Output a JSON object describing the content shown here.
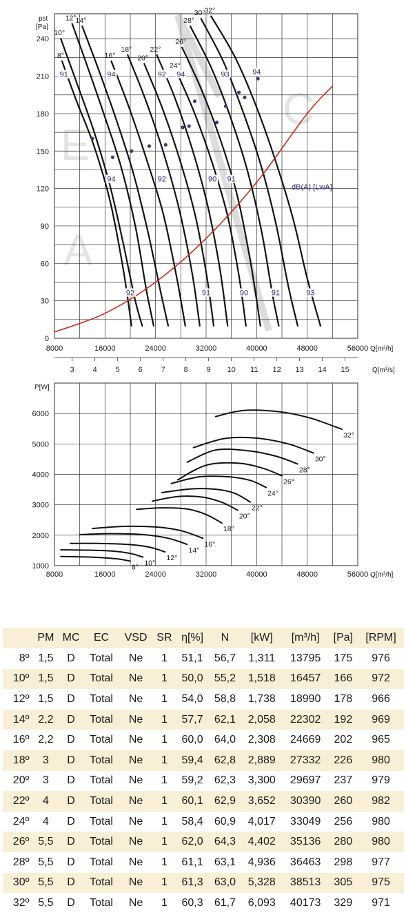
{
  "pressure_chart": {
    "ylabel": "pst",
    "yunit": "[Pa]",
    "xlabel": "Q[m³/h]",
    "x2label": "Q[m³/s]",
    "efficiency_label": "dB(A) [LwA]"
  },
  "power_chart": {
    "ylabel": "P[W]",
    "xlabel": "Q[m³/h]"
  },
  "table": {
    "headers": [
      "",
      "PM",
      "MC",
      "EC",
      "VSD",
      "SR",
      "η[%]",
      "N",
      "[kW]",
      "[m³/h]",
      "[Pa]",
      "[RPM]"
    ],
    "rows": [
      [
        "8º",
        "1,5",
        "D",
        "Total",
        "Ne",
        "1",
        "51,1",
        "56,7",
        "1,311",
        "13795",
        "175",
        "976"
      ],
      [
        "10º",
        "1,5",
        "D",
        "Total",
        "Ne",
        "1",
        "50,0",
        "55,2",
        "1,518",
        "16457",
        "166",
        "972"
      ],
      [
        "12º",
        "1,5",
        "D",
        "Total",
        "Ne",
        "1",
        "54,0",
        "58,8",
        "1,738",
        "18990",
        "178",
        "966"
      ],
      [
        "14º",
        "2,2",
        "D",
        "Total",
        "Ne",
        "1",
        "57,7",
        "62,1",
        "2,058",
        "22302",
        "192",
        "969"
      ],
      [
        "16º",
        "2,2",
        "D",
        "Total",
        "Ne",
        "1",
        "60,0",
        "64,0",
        "2,308",
        "24669",
        "202",
        "965"
      ],
      [
        "18º",
        "3",
        "D",
        "Total",
        "Ne",
        "1",
        "59,4",
        "62,8",
        "2,889",
        "27332",
        "226",
        "980"
      ],
      [
        "20º",
        "3",
        "D",
        "Total",
        "Ne",
        "1",
        "59,2",
        "62,3",
        "3,300",
        "29697",
        "237",
        "979"
      ],
      [
        "22º",
        "4",
        "D",
        "Total",
        "Ne",
        "1",
        "60,1",
        "62,9",
        "3,652",
        "30390",
        "260",
        "982"
      ],
      [
        "24º",
        "4",
        "D",
        "Total",
        "Ne",
        "1",
        "58,4",
        "60,9",
        "4,017",
        "33049",
        "256",
        "980"
      ],
      [
        "26º",
        "5,5",
        "D",
        "Total",
        "Ne",
        "1",
        "62,0",
        "64,3",
        "4,402",
        "35136",
        "280",
        "980"
      ],
      [
        "28º",
        "5,5",
        "D",
        "Total",
        "Ne",
        "1",
        "61,1",
        "63,1",
        "4,936",
        "36463",
        "298",
        "977"
      ],
      [
        "30º",
        "5,5",
        "D",
        "Total",
        "Ne",
        "1",
        "61,3",
        "63,0",
        "5,328",
        "38513",
        "305",
        "975"
      ],
      [
        "32º",
        "5,5",
        "D",
        "Total",
        "Ne",
        "1",
        "60,3",
        "61,7",
        "6,093",
        "40173",
        "329",
        "971"
      ]
    ]
  },
  "chart_data": [
    {
      "type": "line",
      "xlabel": "Q[m³/h]",
      "ylabel": "pst [Pa]",
      "xlim": [
        8000,
        56000
      ],
      "ylim": [
        0,
        260
      ],
      "xticks": [
        8000,
        16000,
        24000,
        32000,
        40000,
        48000,
        56000
      ],
      "yticks": [
        0,
        30,
        60,
        90,
        120,
        150,
        180,
        210,
        240
      ],
      "x2label": "Q[m³/s]",
      "x2ticks": [
        3,
        4,
        5,
        6,
        7,
        8,
        9,
        10,
        11,
        12,
        13,
        14,
        15
      ],
      "grid": true,
      "series": [
        {
          "name": "8°",
          "x": [
            9200,
            11500,
            14200,
            16800,
            18900,
            20200
          ],
          "y": [
            222,
            190,
            155,
            110,
            55,
            10
          ]
        },
        {
          "name": "10°",
          "x": [
            9000,
            11500,
            14300,
            16800,
            18800,
            20800,
            21900
          ],
          "y": [
            240,
            205,
            165,
            122,
            78,
            30,
            10
          ]
        },
        {
          "name": "12°",
          "x": [
            10800,
            13200,
            15800,
            18500,
            20800,
            22500,
            23700
          ],
          "y": [
            252,
            218,
            180,
            138,
            90,
            40,
            10
          ]
        },
        {
          "name": "14°",
          "x": [
            12400,
            15000,
            17800,
            20500,
            22800,
            24900,
            26000
          ],
          "y": [
            250,
            215,
            175,
            132,
            85,
            35,
            10
          ]
        },
        {
          "name": "16°",
          "x": [
            17000,
            19800,
            22600,
            25200,
            27300,
            28700
          ],
          "y": [
            222,
            185,
            143,
            100,
            50,
            10
          ]
        },
        {
          "name": "18°",
          "x": [
            19600,
            22500,
            25300,
            27800,
            29800,
            31000
          ],
          "y": [
            227,
            190,
            148,
            102,
            52,
            10
          ]
        },
        {
          "name": "20°",
          "x": [
            22200,
            25100,
            27900,
            30300,
            32100,
            33200
          ],
          "y": [
            220,
            184,
            142,
            98,
            50,
            10
          ]
        },
        {
          "name": "22°",
          "x": [
            24200,
            27100,
            29900,
            32300,
            34200,
            35400
          ],
          "y": [
            227,
            192,
            150,
            105,
            55,
            10
          ]
        },
        {
          "name": "24°",
          "x": [
            27300,
            30200,
            33000,
            35400,
            37200,
            38300
          ],
          "y": [
            214,
            180,
            140,
            98,
            50,
            10
          ]
        },
        {
          "name": "26°",
          "x": [
            28200,
            31200,
            34200,
            36900,
            39000,
            40600
          ],
          "y": [
            233,
            200,
            160,
            115,
            62,
            10
          ]
        },
        {
          "name": "28°",
          "x": [
            29500,
            32800,
            35800,
            38500,
            40800,
            42500,
            43500
          ],
          "y": [
            250,
            217,
            178,
            135,
            85,
            35,
            10
          ]
        },
        {
          "name": "30°",
          "x": [
            31200,
            34700,
            37800,
            40600,
            43000,
            45000,
            46500
          ],
          "y": [
            256,
            222,
            182,
            140,
            93,
            42,
            10
          ]
        },
        {
          "name": "32°",
          "x": [
            32800,
            36600,
            40000,
            43000,
            45800,
            48000,
            50100
          ],
          "y": [
            258,
            225,
            185,
            142,
            95,
            48,
            10
          ]
        },
        {
          "name": "system",
          "x": [
            8000,
            16000,
            24000,
            32000,
            40000,
            48000,
            52000
          ],
          "y": [
            5,
            20,
            45,
            80,
            125,
            180,
            202
          ]
        }
      ],
      "efficiency_labels": [
        "91",
        "94",
        "94",
        "92",
        "92",
        "94",
        "92",
        "90",
        "91",
        "93",
        "94",
        "91",
        "90",
        "91",
        "93"
      ],
      "efficiency_unit": "dB(A) [LwA]"
    },
    {
      "type": "line",
      "xlabel": "Q[m³/h]",
      "ylabel": "P[W]",
      "xlim": [
        8000,
        56000
      ],
      "ylim": [
        1000,
        7000
      ],
      "xticks": [
        8000,
        16000,
        24000,
        32000,
        40000,
        48000,
        56000
      ],
      "yticks": [
        1000,
        2000,
        3000,
        4000,
        5000,
        6000
      ],
      "grid": true,
      "series": [
        {
          "name": "8°",
          "x": [
            9000,
            12000,
            15000,
            18000,
            20000
          ],
          "y": [
            1300,
            1290,
            1270,
            1220,
            1150
          ]
        },
        {
          "name": "10°",
          "x": [
            9000,
            13000,
            17000,
            20000,
            22000
          ],
          "y": [
            1520,
            1510,
            1480,
            1400,
            1280
          ]
        },
        {
          "name": "12°",
          "x": [
            10500,
            15000,
            19500,
            23000,
            25500
          ],
          "y": [
            1730,
            1730,
            1700,
            1610,
            1450
          ]
        },
        {
          "name": "14°",
          "x": [
            12000,
            17000,
            22000,
            26000,
            29000
          ],
          "y": [
            2020,
            2050,
            2020,
            1900,
            1700
          ]
        },
        {
          "name": "16°",
          "x": [
            14000,
            19000,
            24000,
            28000,
            31500
          ],
          "y": [
            2220,
            2290,
            2270,
            2150,
            1900
          ]
        },
        {
          "name": "18°",
          "x": [
            21000,
            25000,
            29000,
            32000,
            34500
          ],
          "y": [
            2850,
            2900,
            2860,
            2680,
            2400
          ]
        },
        {
          "name": "20°",
          "x": [
            23500,
            27500,
            31500,
            34500,
            37000
          ],
          "y": [
            3120,
            3270,
            3250,
            3080,
            2820
          ]
        },
        {
          "name": "22°",
          "x": [
            25000,
            29500,
            33500,
            36500,
            39000
          ],
          "y": [
            3400,
            3520,
            3510,
            3380,
            3090
          ]
        },
        {
          "name": "24°",
          "x": [
            26500,
            31000,
            35500,
            39000,
            41500
          ],
          "y": [
            3700,
            3920,
            3920,
            3800,
            3570
          ]
        },
        {
          "name": "26°",
          "x": [
            27500,
            32000,
            37000,
            41000,
            44000
          ],
          "y": [
            3820,
            4300,
            4370,
            4200,
            3950
          ]
        },
        {
          "name": "28°",
          "x": [
            29000,
            33500,
            38500,
            43000,
            46500
          ],
          "y": [
            4400,
            4800,
            4780,
            4600,
            4340
          ]
        },
        {
          "name": "30°",
          "x": [
            30000,
            35000,
            40000,
            45000,
            49000
          ],
          "y": [
            4880,
            5180,
            5190,
            5000,
            4700
          ]
        },
        {
          "name": "32°",
          "x": [
            33500,
            38000,
            43500,
            48500,
            53500
          ],
          "y": [
            5900,
            6100,
            6060,
            5850,
            5480
          ]
        }
      ]
    }
  ]
}
